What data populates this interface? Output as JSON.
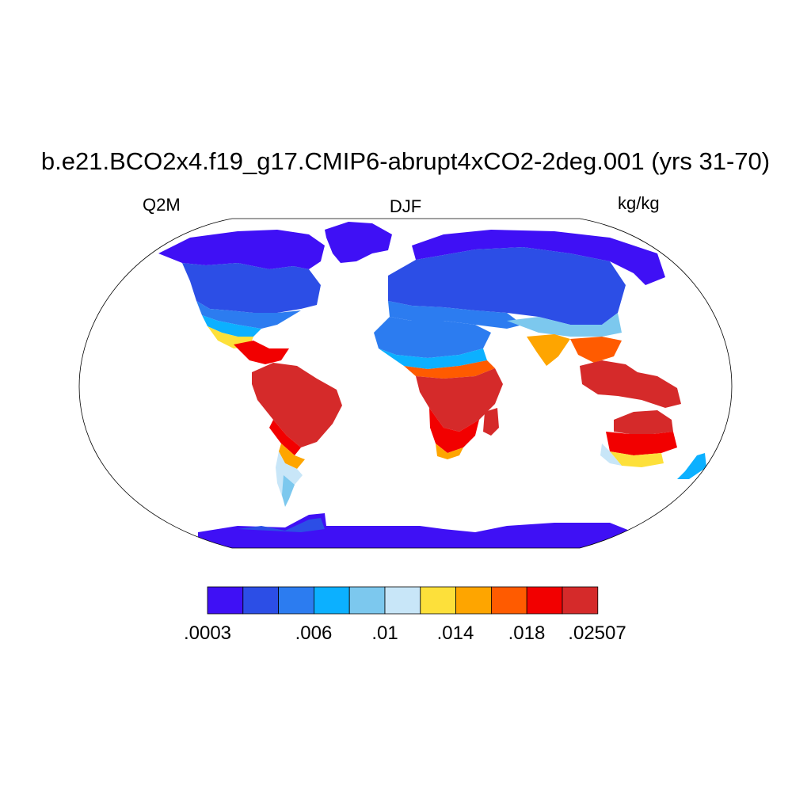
{
  "title": "b.e21.BCO2x4.f19_g17.CMIP6-abrupt4xCO2-2deg.001 (yrs 31-70)",
  "left_label": "Q2M",
  "center_label": "DJF",
  "right_label": "kg/kg",
  "colorbar": {
    "colors": [
      "#3f10f5",
      "#2c4ee6",
      "#2c7cf0",
      "#0cb0ff",
      "#7cc8ee",
      "#c8e6f8",
      "#fde03a",
      "#fea500",
      "#ff5b00",
      "#f20000",
      "#d52a2a"
    ],
    "labels": [
      ".0003",
      ".006",
      ".01",
      ".014",
      ".018",
      ".02507"
    ]
  },
  "chart_data": {
    "type": "heatmap",
    "variable": "Q2M",
    "season": "DJF",
    "units": "kg/kg",
    "projection": "Robinson",
    "levels_labeled": [
      0.0003,
      0.006,
      0.01,
      0.014,
      0.018,
      0.02507
    ],
    "regions": [
      {
        "region": "Antarctica",
        "bin": 0
      },
      {
        "region": "Greenland",
        "bin": 0
      },
      {
        "region": "Northern Canada / Alaska",
        "bin": 0
      },
      {
        "region": "Siberia",
        "bin": 0
      },
      {
        "region": "Canada / northern USA",
        "bin": 1
      },
      {
        "region": "Europe / central Asia",
        "bin": 1
      },
      {
        "region": "Southern USA",
        "bin": 3
      },
      {
        "region": "Sahara",
        "bin": 2
      },
      {
        "region": "Middle East",
        "bin": 3
      },
      {
        "region": "Southern Africa",
        "bin": 8
      },
      {
        "region": "Central Africa",
        "bin": 10
      },
      {
        "region": "Amazon",
        "bin": 10
      },
      {
        "region": "Southern South America",
        "bin": 5
      },
      {
        "region": "India",
        "bin": 7
      },
      {
        "region": "Maritime Continent",
        "bin": 10
      },
      {
        "region": "Northern Australia",
        "bin": 9
      },
      {
        "region": "Southern Australia",
        "bin": 5
      }
    ]
  }
}
